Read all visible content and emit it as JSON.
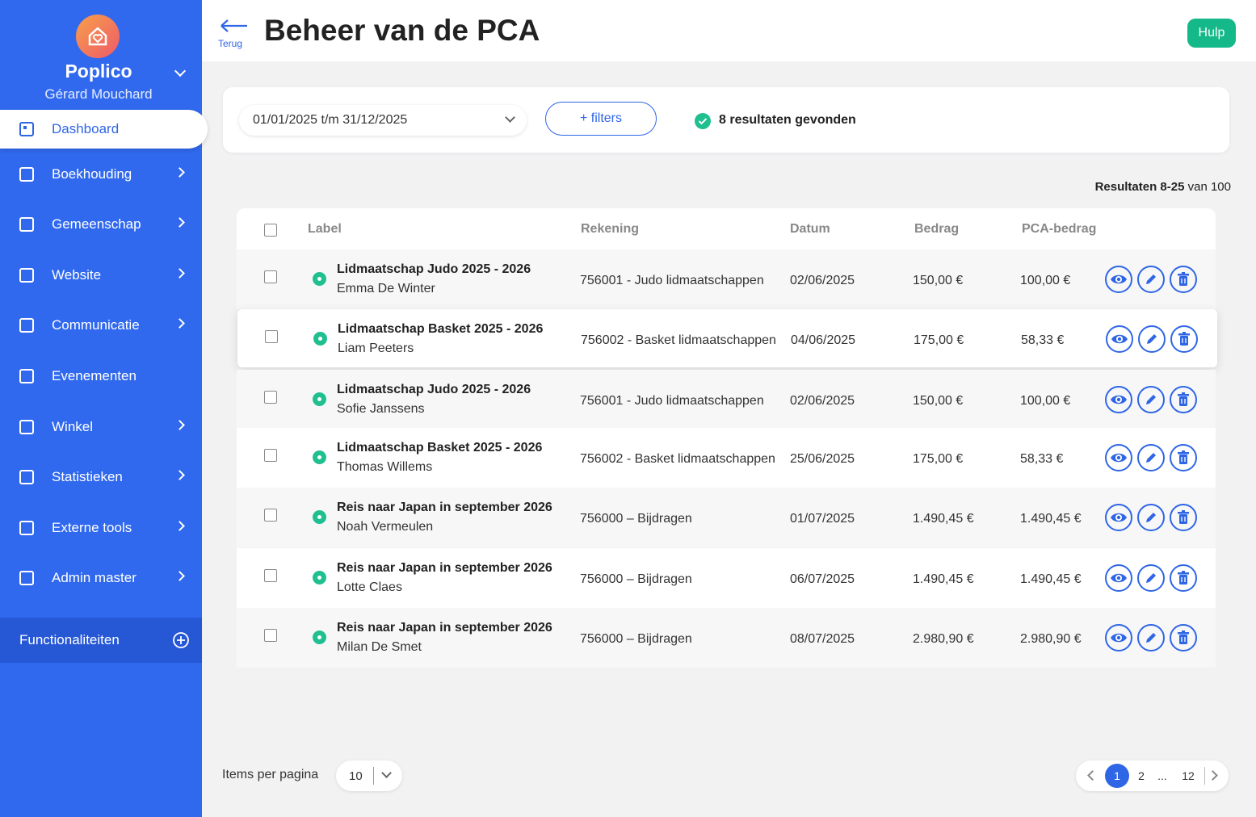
{
  "sidebar": {
    "brand": "Poplico",
    "user": "Gérard Mouchard",
    "menu": [
      "Dashboard",
      "Boekhouding",
      "Gemeenschap",
      "Website",
      "Communicatie",
      "Evenementen",
      "Winkel",
      "Statistieken",
      "Externe tools",
      "Admin master"
    ],
    "footer": "Functionaliteiten"
  },
  "header": {
    "back": "Terug",
    "title": "Beheer van de PCA",
    "help": "Hulp"
  },
  "filters": {
    "period": "01/01/2025 t/m 31/12/2025",
    "button": "+ filters",
    "results": "8 resultaten gevonden"
  },
  "summary": {
    "range": "Resultaten 8-25",
    "total": "van 100"
  },
  "table": {
    "columns": [
      "Label",
      "Rekening",
      "Datum",
      "Bedrag",
      "PCA-bedrag"
    ],
    "rows": [
      {
        "title": "Lidmaatschap Judo 2025 - 2026",
        "name": "Emma De Winter",
        "account": "756001 - Judo lidmaatschappen",
        "date": "02/06/2025",
        "amount": "150,00 €",
        "pca": "100,00 €"
      },
      {
        "title": "Lidmaatschap Basket 2025 - 2026",
        "name": "Liam Peeters",
        "account": "756002 - Basket lidmaatschappen",
        "date": "04/06/2025",
        "amount": "175,00 €",
        "pca": "58,33 €"
      },
      {
        "title": "Lidmaatschap Judo 2025 - 2026",
        "name": "Sofie Janssens",
        "account": "756001 - Judo lidmaatschappen",
        "date": "02/06/2025",
        "amount": "150,00 €",
        "pca": "100,00 €"
      },
      {
        "title": "Lidmaatschap Basket 2025 - 2026",
        "name": "Thomas Willems",
        "account": "756002 - Basket lidmaatschappen",
        "date": "25/06/2025",
        "amount": "175,00 €",
        "pca": "58,33 €"
      },
      {
        "title": "Reis naar Japan in september 2026",
        "name": "Noah Vermeulen",
        "account": "756000 – Bijdragen",
        "date": "01/07/2025",
        "amount": "1.490,45 €",
        "pca": "1.490,45 €"
      },
      {
        "title": "Reis naar Japan in september 2026",
        "name": "Lotte Claes",
        "account": "756000 – Bijdragen",
        "date": "06/07/2025",
        "amount": "1.490,45 €",
        "pca": "1.490,45 €"
      },
      {
        "title": "Reis naar Japan in september 2026",
        "name": "Milan De Smet",
        "account": "756000 – Bijdragen",
        "date": "08/07/2025",
        "amount": "2.980,90 €",
        "pca": "2.980,90 €"
      }
    ]
  },
  "pagination": {
    "per_page_label": "Items per pagina",
    "per_page": "10",
    "pages": [
      "1",
      "2",
      "...",
      "12"
    ]
  }
}
